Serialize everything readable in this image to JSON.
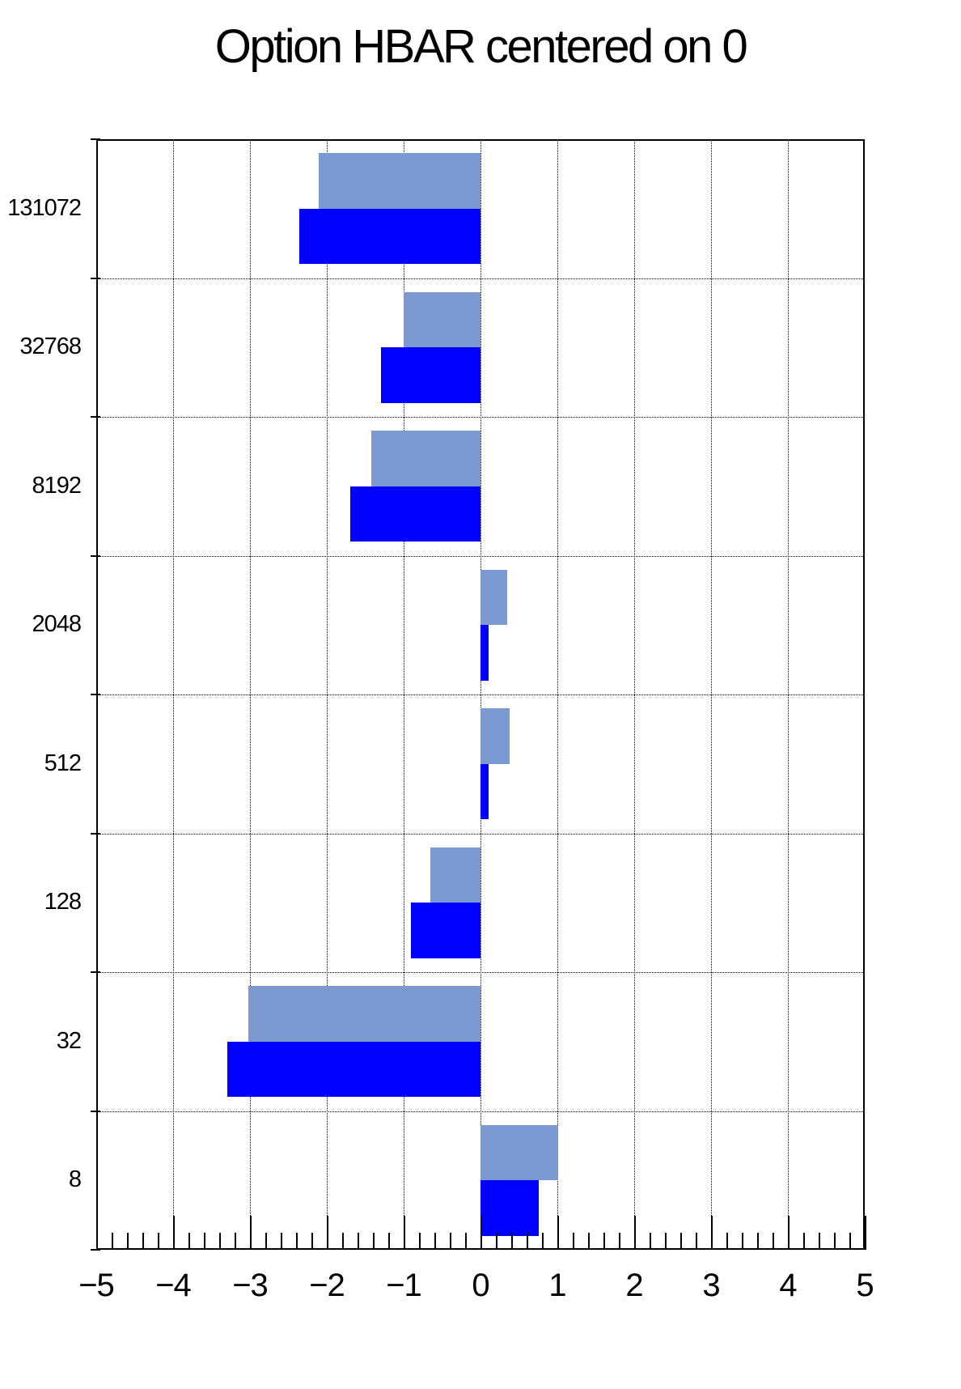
{
  "chart_data": {
    "type": "bar",
    "orientation": "horizontal",
    "title": "Option HBAR centered on 0",
    "categories": [
      "131072",
      "32768",
      "8192",
      "2048",
      "512",
      "128",
      "32",
      "8"
    ],
    "series": [
      {
        "name": "upper-light-blue-bars",
        "color": "#7D99D1",
        "values": [
          -2.11,
          -1.0,
          -1.42,
          0.35,
          0.38,
          -0.65,
          -3.02,
          1.01
        ]
      },
      {
        "name": "lower-blue-bars",
        "color": "#0000FF",
        "values": [
          -2.36,
          -1.29,
          -1.7,
          0.1,
          0.1,
          -0.91,
          -3.3,
          0.76
        ]
      }
    ],
    "xlim": [
      -5,
      5
    ],
    "x_ticks": [
      -5,
      -4,
      -3,
      -2,
      -1,
      0,
      1,
      2,
      3,
      4,
      5
    ],
    "x_minor_tick_step": 0.2,
    "bars_centered_on": 0,
    "bar_width_fraction": 0.4,
    "bar_offset_fractions": [
      0.1,
      0.5
    ],
    "grid": "dotted vertical lines at integer x, dotted horizontal lines at bin boundaries",
    "legend": "none"
  },
  "colors": {
    "background": "#FFFFFF",
    "axis": "#000000",
    "grid": "#000000",
    "title_text": "#000000"
  }
}
